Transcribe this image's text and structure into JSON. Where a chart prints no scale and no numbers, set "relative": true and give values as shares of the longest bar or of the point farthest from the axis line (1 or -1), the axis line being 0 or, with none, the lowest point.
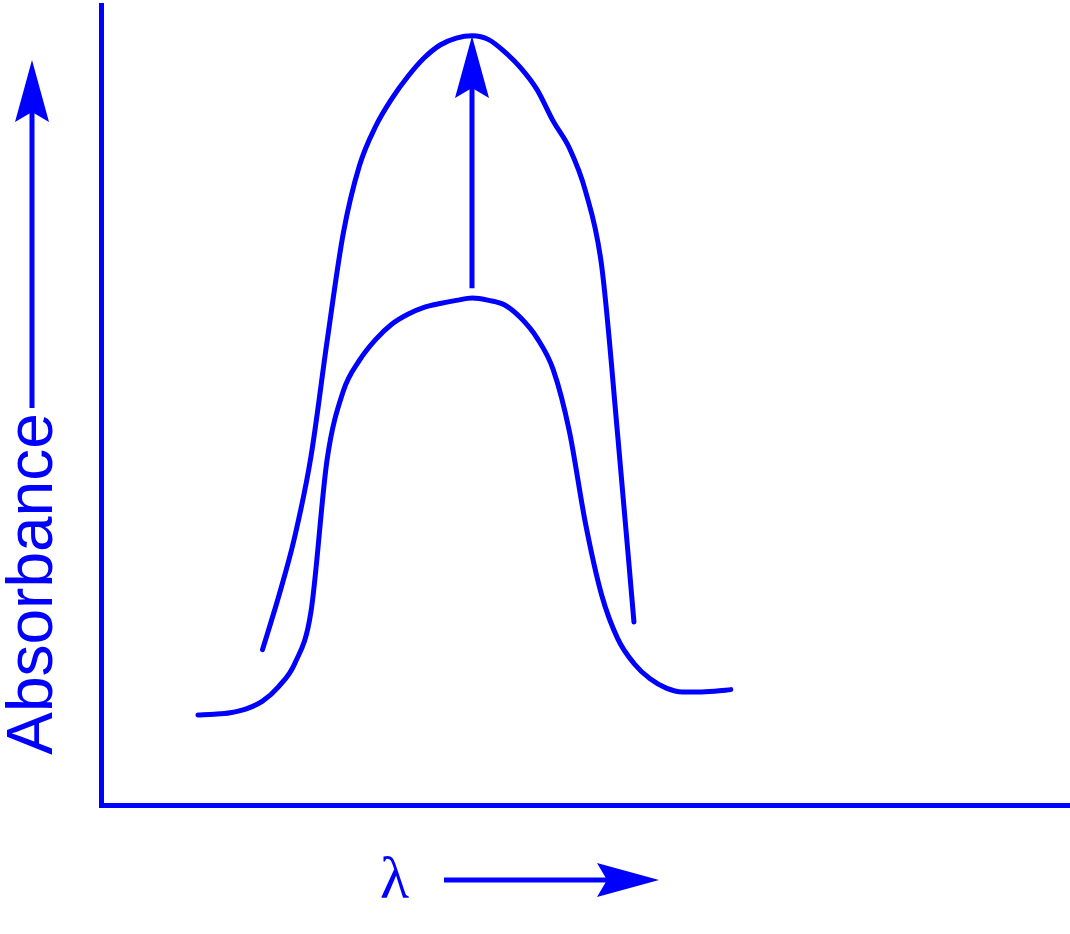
{
  "chart_data": {
    "type": "line",
    "relative": true,
    "xlabel": "λ",
    "ylabel": "Absorbance",
    "legend": false,
    "grid": false,
    "marker": "none",
    "line_style": "solid",
    "categories": [
      null,
      null,
      null,
      null,
      null,
      null,
      null,
      null,
      null,
      null,
      null,
      null,
      null,
      null,
      null,
      null,
      null,
      null,
      null,
      null,
      null,
      null,
      null,
      null,
      null,
      null,
      null,
      null,
      null,
      null,
      null,
      null,
      null,
      null,
      null,
      null,
      null,
      null,
      null,
      null,
      null,
      null,
      null,
      null,
      null,
      null,
      null,
      null,
      null,
      null,
      null,
      null,
      null,
      null,
      null,
      null,
      null,
      null,
      null,
      null,
      null
    ],
    "series": [
      {
        "color": "#0000ff",
        "values": [
          null,
          null,
          null,
          null,
          null,
          null,
          0.117,
          0.118,
          0.12,
          0.125,
          0.135,
          0.154,
          0.184,
          0.251,
          0.449,
          0.538,
          0.578,
          0.605,
          0.625,
          0.638,
          0.647,
          0.652,
          0.656,
          0.659,
          0.656,
          0.65,
          0.633,
          0.607,
          0.566,
          0.486,
          0.366,
          0.273,
          0.216,
          0.184,
          0.164,
          0.152,
          0.147,
          0.147,
          0.148,
          0.15,
          null,
          null,
          null,
          null,
          null,
          null,
          null,
          null,
          null,
          null,
          null,
          null,
          null,
          null,
          null,
          null,
          null,
          null,
          null,
          null,
          null
        ]
      },
      {
        "color": "#0000ff",
        "values": [
          null,
          null,
          null,
          null,
          null,
          null,
          null,
          null,
          null,
          null,
          0.202,
          0.271,
          0.349,
          0.453,
          0.603,
          0.743,
          0.831,
          0.882,
          0.918,
          0.947,
          0.971,
          0.988,
          0.997,
          1,
          0.995,
          0.979,
          0.958,
          0.93,
          0.889,
          0.854,
          0.798,
          0.701,
          0.479,
          0.238,
          null,
          null,
          null,
          null,
          null,
          null,
          null,
          null,
          null,
          null,
          null,
          null,
          null,
          null,
          null,
          null,
          null,
          null,
          null,
          null,
          null,
          null,
          null,
          null,
          null,
          null,
          null
        ]
      }
    ]
  }
}
